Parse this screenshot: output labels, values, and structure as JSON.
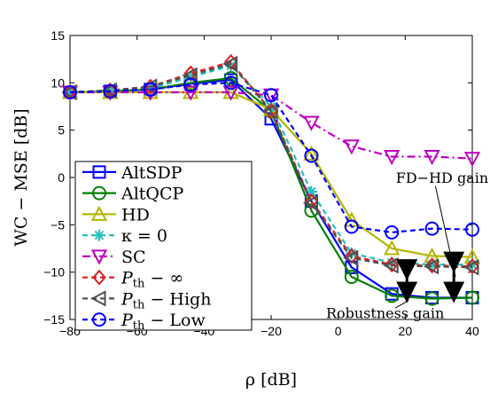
{
  "chart_data": {
    "type": "line",
    "x": [
      -80,
      -68,
      -56,
      -44,
      -32,
      -20,
      -8,
      4,
      16,
      28,
      40
    ],
    "xlabel": "ρ  [dB]",
    "ylabel": "WC − MSE  [dB]",
    "xlim": [
      -80,
      40
    ],
    "ylim": [
      -15,
      15
    ],
    "xticks": [
      -80,
      -60,
      -40,
      -20,
      0,
      20,
      40
    ],
    "yticks": [
      -15,
      -10,
      -5,
      0,
      5,
      10,
      15
    ],
    "xtick_labels": [
      "−80",
      "−60",
      "−40",
      "−20",
      "0",
      "20",
      "40"
    ],
    "ytick_labels": [
      "−15",
      "−10",
      "−5",
      "0",
      "5",
      "10",
      "15"
    ],
    "grid": false,
    "legend_position": "bottom-left",
    "series": [
      {
        "name": "AltSDP",
        "legend_main": "AltSDP",
        "legend_sub": "",
        "legend_tail": "",
        "color": "#0000ff",
        "dash": "",
        "marker": "square",
        "values": [
          9.0,
          9.1,
          9.3,
          9.9,
          10.3,
          6.2,
          -2.5,
          -9.5,
          -12.3,
          -12.7,
          -12.7
        ]
      },
      {
        "name": "AltQCP",
        "legend_main": "AltQCP",
        "legend_sub": "",
        "legend_tail": "",
        "color": "#008000",
        "dash": "",
        "marker": "circle",
        "values": [
          9.0,
          9.1,
          9.3,
          10.0,
          10.5,
          7.0,
          -3.5,
          -10.5,
          -12.5,
          -12.8,
          -12.7
        ]
      },
      {
        "name": "HD",
        "legend_main": "HD",
        "legend_sub": "",
        "legend_tail": "",
        "color": "#b5b500",
        "dash": "",
        "marker": "triangle-up",
        "values": [
          9.0,
          9.0,
          9.0,
          9.0,
          9.0,
          7.2,
          2.5,
          -4.5,
          -7.5,
          -8.3,
          -8.4
        ]
      },
      {
        "name": "κ = 0",
        "legend_main": "κ = 0",
        "legend_sub": "",
        "legend_tail": "",
        "color": "#20c0c0",
        "dash": "6,4",
        "marker": "star",
        "values": [
          9.0,
          9.1,
          9.4,
          10.6,
          11.8,
          7.5,
          -1.5,
          -8.0,
          -9.0,
          -9.2,
          -9.2
        ]
      },
      {
        "name": "SC",
        "legend_main": "SC",
        "legend_sub": "",
        "legend_tail": "",
        "color": "#c000c0",
        "dash": "9,4,2,4",
        "marker": "triangle-down",
        "values": [
          9.0,
          9.0,
          9.0,
          9.0,
          9.0,
          8.7,
          5.8,
          3.3,
          2.2,
          2.2,
          2.0
        ]
      },
      {
        "name": "P_th − ∞",
        "legend_main": "P",
        "legend_sub": "th",
        "legend_tail": " − ∞",
        "color": "#e02020",
        "dash": "6,4",
        "marker": "diamond",
        "values": [
          9.0,
          9.2,
          9.6,
          11.0,
          12.2,
          7.0,
          -2.5,
          -8.3,
          -9.2,
          -9.3,
          -9.4
        ]
      },
      {
        "name": "P_th − High",
        "legend_main": "P",
        "legend_sub": "th",
        "legend_tail": " − High",
        "color": "#505050",
        "dash": "6,4",
        "marker": "triangle-left",
        "values": [
          9.0,
          9.2,
          9.6,
          10.8,
          12.0,
          7.0,
          -2.7,
          -8.5,
          -9.3,
          -9.4,
          -9.5
        ]
      },
      {
        "name": "P_th − Low",
        "legend_main": "P",
        "legend_sub": "th",
        "legend_tail": " − Low",
        "color": "#0000ff",
        "dash": "6,4",
        "marker": "circle",
        "values": [
          9.0,
          9.1,
          9.3,
          9.8,
          10.0,
          8.7,
          2.3,
          -5.2,
          -5.8,
          -5.4,
          -5.5
        ]
      }
    ],
    "annotations": [
      {
        "text": "FD−HD gain",
        "x": 31,
        "y": 0
      },
      {
        "text": "Robustness gain",
        "x": 14,
        "y": -14.3
      }
    ],
    "arrows": [
      {
        "x": 20.5,
        "y1": -9.2,
        "y2": -12.7
      },
      {
        "x": 34.5,
        "y1": -8.4,
        "y2": -12.7
      }
    ],
    "pointer_lines": [
      {
        "from": [
          29,
          -0.9
        ],
        "to": [
          35,
          -10.5
        ]
      },
      {
        "from": [
          17,
          -13.8
        ],
        "to": [
          21,
          -13.0
        ]
      }
    ]
  }
}
